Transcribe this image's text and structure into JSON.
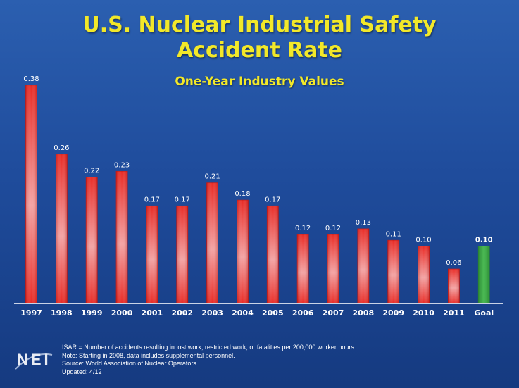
{
  "header": {
    "title_line1": "U.S. Nuclear Industrial Safety",
    "title_line2": "Accident Rate",
    "subtitle": "One-Year Industry Values"
  },
  "colors": {
    "background": "#1f4c9c",
    "title": "#f2e829",
    "bar_red": "#e8302a",
    "bar_goal": "#3aa343"
  },
  "chart_data": {
    "type": "bar",
    "title": "U.S. Nuclear Industrial Safety Accident Rate",
    "subtitle": "One-Year Industry Values",
    "categories": [
      "1997",
      "1998",
      "1999",
      "2000",
      "2001",
      "2002",
      "2003",
      "2004",
      "2005",
      "2006",
      "2007",
      "2008",
      "2009",
      "2010",
      "2011",
      "Goal"
    ],
    "values": [
      0.38,
      0.26,
      0.22,
      0.23,
      0.17,
      0.17,
      0.21,
      0.18,
      0.17,
      0.12,
      0.12,
      0.13,
      0.11,
      0.1,
      0.06,
      0.1
    ],
    "labels": [
      "0.38",
      "0.26",
      "0.22",
      "0.23",
      "0.17",
      "0.17",
      "0.21",
      "0.18",
      "0.17",
      "0.12",
      "0.12",
      "0.13",
      "0.11",
      "0.10",
      "0.06",
      "0.10"
    ],
    "highlight": "Goal",
    "ylim": [
      0,
      0.38
    ],
    "xlabel": "",
    "ylabel": "",
    "grid": false,
    "legend": "none"
  },
  "footer": {
    "lines": [
      "ISAR = Number of accidents resulting in lost work, restricted work, or fatalities per 200,000 worker hours.",
      "Note: Starting in 2008, data includes supplemental personnel.",
      "Source:  World Association of Nuclear Operators",
      "Updated: 4/12"
    ],
    "logo": "NEI"
  }
}
